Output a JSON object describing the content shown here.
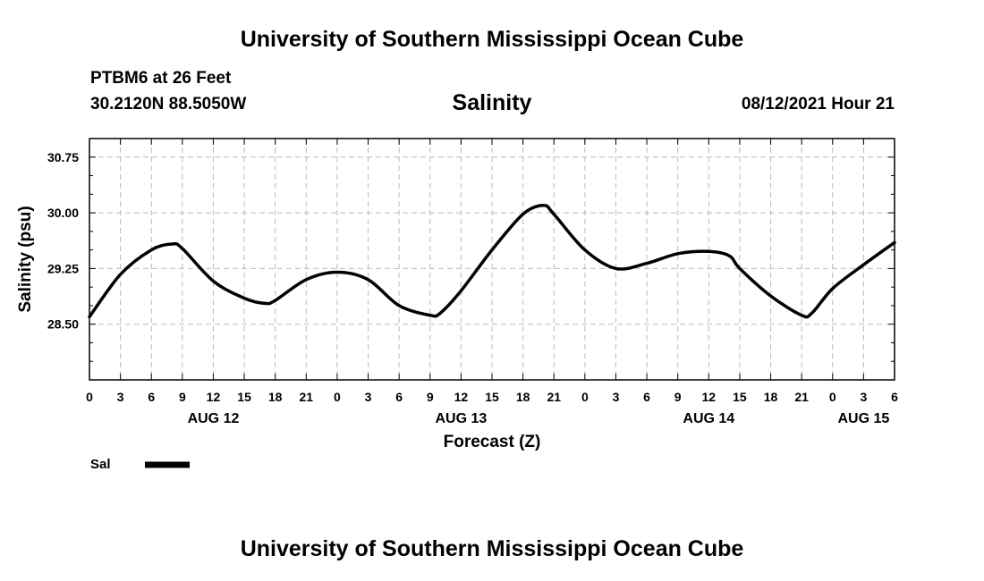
{
  "header": {
    "title": "University of Southern Mississippi Ocean Cube",
    "station": "PTBM6 at 26 Feet",
    "coords": "30.2120N  88.5050W",
    "date_hour": "08/12/2021 Hour 21"
  },
  "footer": {
    "title": "University of Southern Mississippi Ocean Cube"
  },
  "chart_data": {
    "type": "line",
    "title": "Salinity",
    "xlabel": "Forecast (Z)",
    "ylabel": "Salinity (psu)",
    "ylim": [
      27.75,
      31.0
    ],
    "y_ticks": [
      28.5,
      29.25,
      30.0,
      30.75
    ],
    "y_tick_labels": [
      "28.50",
      "29.25",
      "30.00",
      "30.75"
    ],
    "xlim": [
      0,
      78
    ],
    "x_tick_hours": [
      0,
      3,
      6,
      9,
      12,
      15,
      18,
      21,
      24,
      27,
      30,
      33,
      36,
      39,
      42,
      45,
      48,
      51,
      54,
      57,
      60,
      63,
      66,
      69,
      72,
      75,
      78
    ],
    "x_tick_labels": [
      "0",
      "3",
      "6",
      "9",
      "12",
      "15",
      "18",
      "21",
      "0",
      "3",
      "6",
      "9",
      "12",
      "15",
      "18",
      "21",
      "0",
      "3",
      "6",
      "9",
      "12",
      "15",
      "18",
      "21",
      "0",
      "3",
      "6"
    ],
    "day_labels": [
      {
        "label": "AUG 12",
        "hour": 12
      },
      {
        "label": "AUG 13",
        "hour": 36
      },
      {
        "label": "AUG 14",
        "hour": 60
      },
      {
        "label": "AUG 15",
        "hour": 75
      }
    ],
    "grid": true,
    "legend": "bottom-left",
    "series": [
      {
        "name": "Sal",
        "color": "#000000",
        "x": [
          0,
          3,
          6,
          8,
          9,
          12,
          15,
          17,
          18,
          21,
          24,
          27,
          30,
          33,
          34,
          36,
          39,
          42,
          44,
          45,
          48,
          51,
          54,
          57,
          60,
          62,
          63,
          66,
          69,
          70,
          72,
          75,
          78
        ],
        "values": [
          28.6,
          29.17,
          29.5,
          29.58,
          29.52,
          29.08,
          28.85,
          28.78,
          28.82,
          29.1,
          29.2,
          29.1,
          28.75,
          28.62,
          28.65,
          28.95,
          29.5,
          29.98,
          30.1,
          29.98,
          29.5,
          29.25,
          29.32,
          29.45,
          29.48,
          29.42,
          29.25,
          28.88,
          28.62,
          28.65,
          28.98,
          29.3,
          29.6
        ]
      }
    ]
  }
}
